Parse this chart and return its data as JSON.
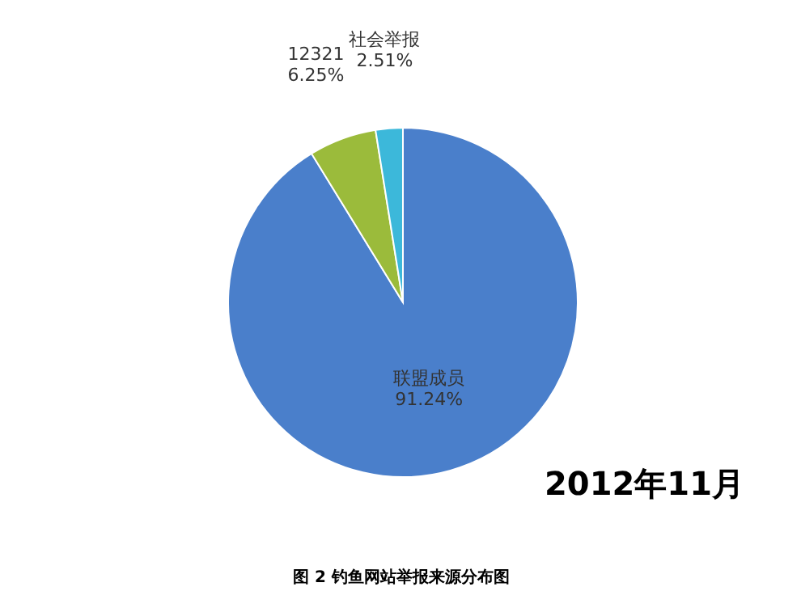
{
  "chart_data": {
    "type": "pie",
    "title": "图 2 钓鱼网站举报来源分布图",
    "categories": [
      "联盟成员",
      "12321",
      "社会举报"
    ],
    "values": [
      91.24,
      6.25,
      2.51
    ],
    "colors": [
      "#4a7fcb",
      "#9bbb3b",
      "#3cb8da"
    ],
    "value_labels": [
      "91.24%",
      "6.25%",
      "2.51%"
    ],
    "annotations": [
      "2012年11月"
    ]
  }
}
